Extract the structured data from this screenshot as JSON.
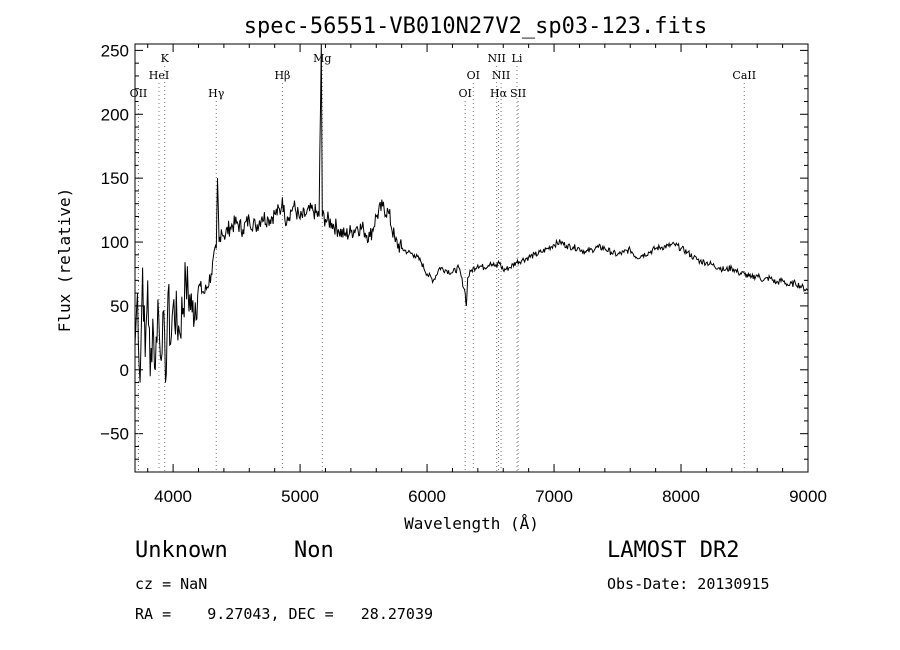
{
  "chart_data": {
    "type": "line",
    "title": "spec-56551-VB010N27V2_sp03-123.fits",
    "xlabel": "Wavelength (Å)",
    "ylabel": "Flux (relative)",
    "xlim": [
      3700,
      9000
    ],
    "ylim": [
      -80,
      255
    ],
    "xticks": [
      4000,
      5000,
      6000,
      7000,
      8000,
      9000
    ],
    "yticks": [
      -50,
      0,
      50,
      100,
      150,
      200,
      250
    ],
    "grid": false,
    "series": [
      {
        "x": [
          3700,
          3720,
          3740,
          3760,
          3780,
          3800,
          3820,
          3840,
          3860,
          3880,
          3900,
          3920,
          3940,
          3960,
          3980,
          4000,
          4050,
          4100,
          4150,
          4200,
          4250,
          4300,
          4340,
          4350,
          4362,
          4380,
          4400,
          4450,
          4500,
          4550,
          4600,
          4650,
          4700,
          4750,
          4800,
          4850,
          4861,
          4880,
          4900,
          4950,
          5000,
          5050,
          5100,
          5150,
          5167,
          5175,
          5200,
          5250,
          5300,
          5350,
          5400,
          5450,
          5500,
          5550,
          5600,
          5650,
          5700,
          5750,
          5800,
          5850,
          5900,
          5950,
          6000,
          6050,
          6100,
          6150,
          6200,
          6250,
          6300,
          6310,
          6320,
          6350,
          6400,
          6450,
          6500,
          6550,
          6563,
          6600,
          6650,
          6700,
          6750,
          6800,
          6850,
          6900,
          6950,
          7000,
          7050,
          7100,
          7150,
          7200,
          7250,
          7300,
          7350,
          7400,
          7450,
          7500,
          7550,
          7600,
          7650,
          7700,
          7750,
          7800,
          7850,
          7900,
          7950,
          8000,
          8050,
          8100,
          8150,
          8200,
          8250,
          8300,
          8350,
          8400,
          8450,
          8500,
          8550,
          8600,
          8650,
          8700,
          8750,
          8800,
          8850,
          8900,
          8950,
          9000
        ],
        "y": [
          20,
          60,
          -10,
          80,
          10,
          70,
          -5,
          40,
          0,
          55,
          10,
          45,
          -10,
          60,
          20,
          50,
          30,
          70,
          45,
          65,
          60,
          75,
          95,
          150,
          100,
          110,
          105,
          112,
          115,
          110,
          118,
          112,
          120,
          118,
          122,
          125,
          135,
          118,
          120,
          128,
          118,
          122,
          125,
          120,
          255,
          120,
          118,
          115,
          110,
          105,
          108,
          112,
          110,
          104,
          120,
          128,
          122,
          100,
          95,
          92,
          90,
          85,
          75,
          70,
          80,
          78,
          76,
          80,
          60,
          50,
          72,
          78,
          82,
          80,
          84,
          80,
          85,
          78,
          80,
          84,
          86,
          88,
          90,
          92,
          95,
          98,
          100,
          97,
          96,
          95,
          92,
          94,
          96,
          95,
          92,
          90,
          92,
          94,
          88,
          90,
          92,
          95,
          96,
          97,
          98,
          95,
          92,
          88,
          85,
          84,
          82,
          80,
          78,
          80,
          76,
          75,
          72,
          74,
          70,
          72,
          68,
          70,
          66,
          68,
          65,
          62
        ]
      }
    ],
    "lines": [
      {
        "name": "OII",
        "wavelength": 3727,
        "label_row": 3
      },
      {
        "name": "K",
        "wavelength": 3934,
        "label_row": 1
      },
      {
        "name": "HeI",
        "wavelength": 3889,
        "label_row": 2
      },
      {
        "name": "Hγ",
        "wavelength": 4340,
        "label_row": 3
      },
      {
        "name": "Hβ",
        "wavelength": 4861,
        "label_row": 2
      },
      {
        "name": "Mg",
        "wavelength": 5175,
        "label_row": 1
      },
      {
        "name": "OI",
        "wavelength": 6300,
        "label_row": 3
      },
      {
        "name": "OI",
        "wavelength": 6364,
        "label_row": 2
      },
      {
        "name": "NII",
        "wavelength": 6548,
        "label_row": 1
      },
      {
        "name": "NII",
        "wavelength": 6583,
        "label_row": 2
      },
      {
        "name": "Hα",
        "wavelength": 6563,
        "label_row": 3
      },
      {
        "name": "Li",
        "wavelength": 6708,
        "label_row": 1
      },
      {
        "name": "SII",
        "wavelength": 6717,
        "label_row": 3
      },
      {
        "name": "CaII",
        "wavelength": 8498,
        "label_row": 2
      }
    ]
  },
  "info": {
    "class": "Unknown",
    "subclass": "Non",
    "survey": "LAMOST DR2",
    "cz": "cz = NaN",
    "obs_date": "Obs-Date: 20130915",
    "coords": "RA =    9.27043, DEC =   28.27039"
  }
}
